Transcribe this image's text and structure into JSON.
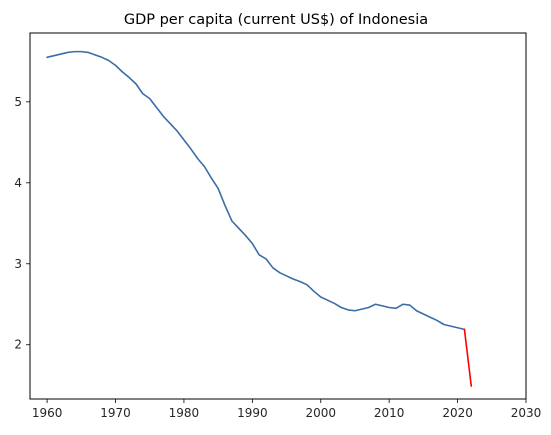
{
  "chart_data": {
    "type": "line",
    "title": "GDP per capita (current US$) of Indonesia",
    "xlabel": "",
    "ylabel": "",
    "xlim": [
      1957.5,
      2030
    ],
    "ylim": [
      1.33,
      5.85
    ],
    "x_ticks": [
      1960,
      1970,
      1980,
      1990,
      2000,
      2010,
      2020,
      2030
    ],
    "y_ticks": [
      2,
      3,
      4,
      5
    ],
    "grid": false,
    "legend": "none",
    "series": [
      {
        "color": "#3a6ea5",
        "points": [
          [
            1960,
            5.55
          ],
          [
            1961,
            5.57
          ],
          [
            1962,
            5.59
          ],
          [
            1963,
            5.61
          ],
          [
            1964,
            5.62
          ],
          [
            1965,
            5.62
          ],
          [
            1966,
            5.61
          ],
          [
            1967,
            5.58
          ],
          [
            1968,
            5.55
          ],
          [
            1969,
            5.51
          ],
          [
            1970,
            5.45
          ],
          [
            1971,
            5.37
          ],
          [
            1972,
            5.3
          ],
          [
            1973,
            5.22
          ],
          [
            1974,
            5.1
          ],
          [
            1975,
            5.04
          ],
          [
            1976,
            4.93
          ],
          [
            1977,
            4.82
          ],
          [
            1978,
            4.73
          ],
          [
            1979,
            4.64
          ],
          [
            1980,
            4.53
          ],
          [
            1981,
            4.42
          ],
          [
            1982,
            4.3
          ],
          [
            1983,
            4.2
          ],
          [
            1984,
            4.06
          ],
          [
            1985,
            3.93
          ],
          [
            1986,
            3.72
          ],
          [
            1987,
            3.53
          ],
          [
            1988,
            3.44
          ],
          [
            1989,
            3.35
          ],
          [
            1990,
            3.25
          ],
          [
            1991,
            3.11
          ],
          [
            1992,
            3.06
          ],
          [
            1993,
            2.95
          ],
          [
            1994,
            2.89
          ],
          [
            1995,
            2.85
          ],
          [
            1996,
            2.81
          ],
          [
            1997,
            2.78
          ],
          [
            1998,
            2.74
          ],
          [
            1999,
            2.66
          ],
          [
            2000,
            2.59
          ],
          [
            2001,
            2.55
          ],
          [
            2002,
            2.51
          ],
          [
            2003,
            2.46
          ],
          [
            2004,
            2.43
          ],
          [
            2005,
            2.42
          ],
          [
            2006,
            2.44
          ],
          [
            2007,
            2.46
          ],
          [
            2008,
            2.5
          ],
          [
            2009,
            2.48
          ],
          [
            2010,
            2.46
          ],
          [
            2011,
            2.45
          ],
          [
            2012,
            2.5
          ],
          [
            2013,
            2.49
          ],
          [
            2014,
            2.42
          ],
          [
            2015,
            2.38
          ],
          [
            2016,
            2.34
          ],
          [
            2017,
            2.3
          ],
          [
            2018,
            2.25
          ],
          [
            2019,
            2.23
          ],
          [
            2020,
            2.21
          ],
          [
            2021,
            2.19
          ]
        ]
      },
      {
        "color": "#ff0000",
        "points": [
          [
            2021,
            2.19
          ],
          [
            2022,
            1.49
          ]
        ]
      }
    ]
  }
}
